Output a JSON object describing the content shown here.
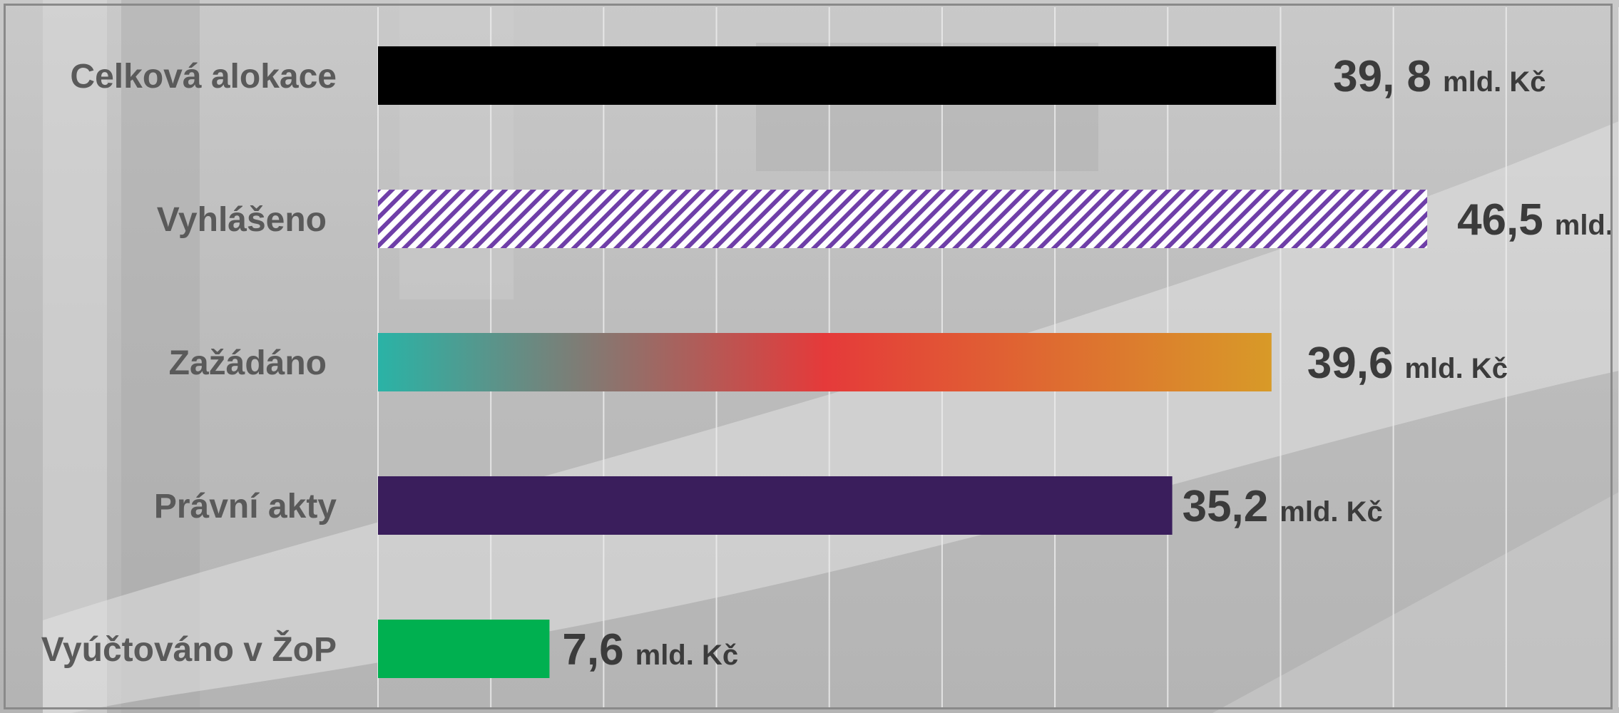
{
  "chart_data": {
    "type": "bar",
    "orientation": "horizontal",
    "categories": [
      "Celková alokace",
      "Vyhlášeno",
      "Zažádáno",
      "Právní akty",
      "Vyúčtováno v ŽoP"
    ],
    "values": [
      39.8,
      46.5,
      39.6,
      35.2,
      7.6
    ],
    "data_labels": [
      "39, 8",
      "46,5",
      "39,6",
      "35,2",
      "7,6"
    ],
    "unit_label": "mld. Kč",
    "title": "",
    "xlabel": "",
    "ylabel": "",
    "xlim": [
      0,
      55
    ],
    "grid": true,
    "legend": "none",
    "bar_styles": [
      {
        "fill": "solid",
        "colors": [
          "#000000"
        ]
      },
      {
        "fill": "hatched",
        "colors": [
          "#6f3fa8",
          "#ffffff"
        ]
      },
      {
        "fill": "gradient",
        "colors": [
          "#2ab3a6",
          "#e53a3a",
          "#d89a28"
        ]
      },
      {
        "fill": "solid",
        "colors": [
          "#3a1e5c"
        ]
      },
      {
        "fill": "solid",
        "colors": [
          "#00b050"
        ]
      }
    ],
    "label_color": "#3b3b3b",
    "category_label_color": "#5a5a5a"
  }
}
